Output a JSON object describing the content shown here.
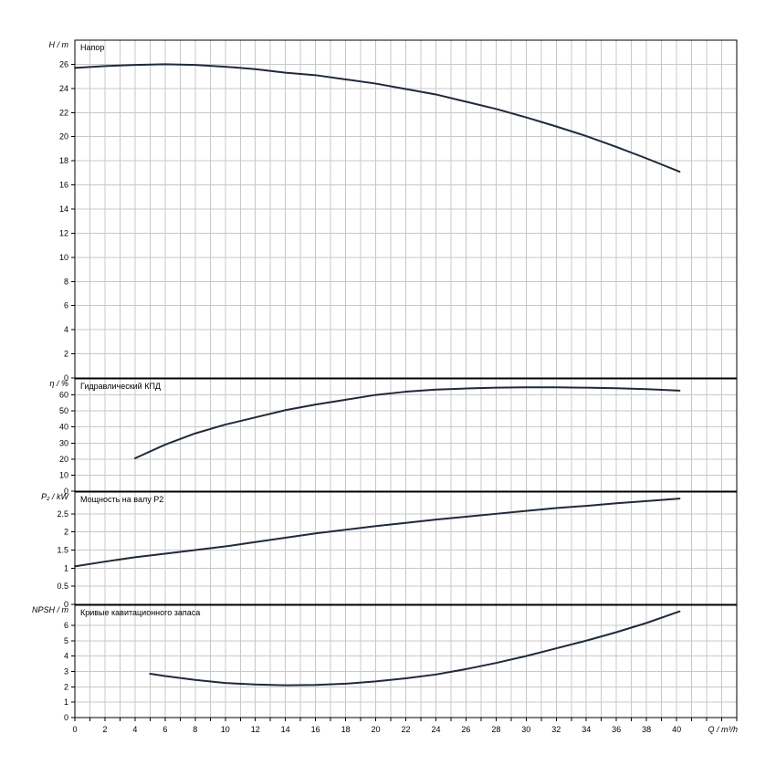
{
  "chart_data": [
    {
      "type": "line",
      "title": "Напор",
      "ylabel": "H / m",
      "xlabel": "Q / m³/h",
      "ylim": [
        0,
        28
      ],
      "yticks": [
        0,
        2,
        4,
        6,
        8,
        10,
        12,
        14,
        16,
        18,
        20,
        22,
        24,
        26
      ],
      "grid": true,
      "x": [
        0,
        2,
        4,
        6,
        8,
        10,
        12,
        14,
        16,
        18,
        20,
        22,
        24,
        26,
        28,
        30,
        32,
        34,
        36,
        38,
        40.2
      ],
      "values": [
        25.7,
        25.85,
        25.95,
        26.0,
        25.95,
        25.8,
        25.6,
        25.3,
        25.1,
        24.75,
        24.4,
        23.95,
        23.5,
        22.9,
        22.3,
        21.6,
        20.85,
        20.05,
        19.15,
        18.2,
        17.1
      ]
    },
    {
      "type": "line",
      "title": "Гидравлический КПД",
      "ylabel": "η / %",
      "ylim": [
        0,
        70
      ],
      "yticks": [
        0,
        10,
        20,
        30,
        40,
        50,
        60
      ],
      "grid": true,
      "x": [
        4,
        6,
        8,
        10,
        12,
        14,
        16,
        18,
        20,
        22,
        24,
        26,
        28,
        30,
        32,
        34,
        36,
        38,
        40.2
      ],
      "values": [
        20.5,
        29,
        36,
        41.5,
        46,
        50.5,
        54,
        57,
        60,
        62,
        63.3,
        64,
        64.5,
        64.7,
        64.7,
        64.5,
        64.2,
        63.6,
        62.7
      ]
    },
    {
      "type": "line",
      "title": "Мощность на валу P2",
      "ylabel": "P₂ / kW",
      "ylim": [
        0,
        3.1
      ],
      "yticks": [
        0,
        0.5,
        1,
        1.5,
        2,
        2.5
      ],
      "ytick_labels": [
        "0",
        "0.5",
        "1",
        "1.5",
        "2",
        "2.5"
      ],
      "grid": true,
      "x": [
        0,
        2,
        4,
        6,
        8,
        10,
        12,
        14,
        16,
        18,
        20,
        22,
        24,
        26,
        28,
        30,
        32,
        34,
        36,
        38,
        40.2
      ],
      "values": [
        1.05,
        1.18,
        1.3,
        1.4,
        1.5,
        1.6,
        1.72,
        1.84,
        1.96,
        2.06,
        2.16,
        2.25,
        2.34,
        2.42,
        2.5,
        2.58,
        2.66,
        2.72,
        2.79,
        2.85,
        2.92
      ]
    },
    {
      "type": "line",
      "title": "Кривые кавитационного запаса",
      "ylabel": "NPSH / m",
      "ylim": [
        0,
        7.3
      ],
      "yticks": [
        0,
        1,
        2,
        3,
        4,
        5,
        6
      ],
      "grid": true,
      "x": [
        5,
        6,
        8,
        10,
        12,
        14,
        16,
        18,
        20,
        22,
        24,
        26,
        28,
        30,
        32,
        34,
        36,
        38,
        40.2
      ],
      "values": [
        2.85,
        2.7,
        2.45,
        2.25,
        2.15,
        2.1,
        2.12,
        2.2,
        2.35,
        2.55,
        2.8,
        3.15,
        3.55,
        4.0,
        4.5,
        5.0,
        5.55,
        6.15,
        6.9
      ]
    }
  ],
  "x_axis": {
    "label": "Q / m³/h",
    "range": [
      0,
      44
    ],
    "ticks": [
      0,
      2,
      4,
      6,
      8,
      10,
      12,
      14,
      16,
      18,
      20,
      22,
      24,
      26,
      28,
      30,
      32,
      34,
      36,
      38,
      40
    ]
  }
}
